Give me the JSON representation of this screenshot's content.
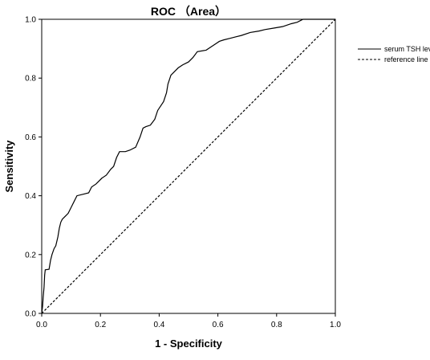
{
  "chart_data": {
    "type": "line",
    "title": "ROC （Area）",
    "xlabel": "1 - Specificity",
    "ylabel": "Sensitivity",
    "xlim": [
      0.0,
      1.0
    ],
    "ylim": [
      0.0,
      1.0
    ],
    "x_ticks": [
      "0.0",
      "0.2",
      "0.4",
      "0.6",
      "0.8",
      "1.0"
    ],
    "y_ticks": [
      "0.0",
      "0.2",
      "0.4",
      "0.6",
      "0.8",
      "1.0"
    ],
    "grid": false,
    "legend_position": "right",
    "series": [
      {
        "name": "serum TSH level",
        "style": "solid",
        "color": "#000000",
        "points": [
          [
            0.0,
            0.0
          ],
          [
            0.003,
            0.025
          ],
          [
            0.005,
            0.055
          ],
          [
            0.008,
            0.09
          ],
          [
            0.01,
            0.13
          ],
          [
            0.012,
            0.148
          ],
          [
            0.025,
            0.15
          ],
          [
            0.03,
            0.18
          ],
          [
            0.035,
            0.2
          ],
          [
            0.042,
            0.22
          ],
          [
            0.048,
            0.23
          ],
          [
            0.055,
            0.26
          ],
          [
            0.06,
            0.29
          ],
          [
            0.065,
            0.31
          ],
          [
            0.07,
            0.32
          ],
          [
            0.08,
            0.33
          ],
          [
            0.09,
            0.34
          ],
          [
            0.1,
            0.36
          ],
          [
            0.11,
            0.38
          ],
          [
            0.12,
            0.4
          ],
          [
            0.14,
            0.405
          ],
          [
            0.16,
            0.41
          ],
          [
            0.17,
            0.43
          ],
          [
            0.185,
            0.44
          ],
          [
            0.195,
            0.45
          ],
          [
            0.205,
            0.46
          ],
          [
            0.22,
            0.47
          ],
          [
            0.235,
            0.49
          ],
          [
            0.245,
            0.5
          ],
          [
            0.255,
            0.53
          ],
          [
            0.265,
            0.55
          ],
          [
            0.285,
            0.55
          ],
          [
            0.3,
            0.555
          ],
          [
            0.32,
            0.565
          ],
          [
            0.335,
            0.6
          ],
          [
            0.345,
            0.63
          ],
          [
            0.355,
            0.635
          ],
          [
            0.37,
            0.64
          ],
          [
            0.385,
            0.66
          ],
          [
            0.395,
            0.69
          ],
          [
            0.405,
            0.705
          ],
          [
            0.415,
            0.72
          ],
          [
            0.425,
            0.75
          ],
          [
            0.43,
            0.78
          ],
          [
            0.44,
            0.81
          ],
          [
            0.455,
            0.825
          ],
          [
            0.465,
            0.835
          ],
          [
            0.48,
            0.845
          ],
          [
            0.5,
            0.855
          ],
          [
            0.515,
            0.87
          ],
          [
            0.53,
            0.89
          ],
          [
            0.56,
            0.895
          ],
          [
            0.575,
            0.905
          ],
          [
            0.59,
            0.915
          ],
          [
            0.605,
            0.925
          ],
          [
            0.62,
            0.93
          ],
          [
            0.64,
            0.935
          ],
          [
            0.66,
            0.94
          ],
          [
            0.68,
            0.945
          ],
          [
            0.71,
            0.955
          ],
          [
            0.74,
            0.96
          ],
          [
            0.76,
            0.965
          ],
          [
            0.79,
            0.97
          ],
          [
            0.82,
            0.975
          ],
          [
            0.85,
            0.985
          ],
          [
            0.87,
            0.99
          ],
          [
            0.89,
            1.0
          ],
          [
            0.92,
            1.0
          ],
          [
            1.0,
            1.0
          ]
        ]
      },
      {
        "name": "reference line",
        "style": "dotted",
        "color": "#000000",
        "points": [
          [
            0.0,
            0.0
          ],
          [
            1.0,
            1.0
          ]
        ]
      }
    ]
  }
}
